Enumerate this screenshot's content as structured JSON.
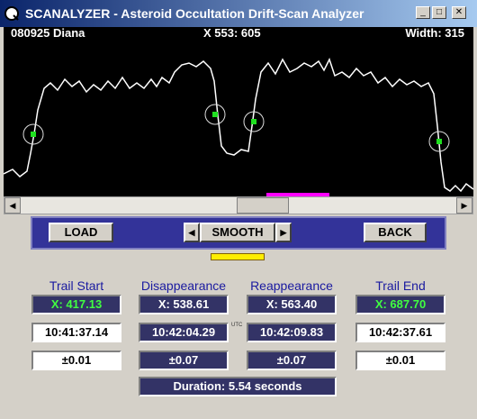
{
  "window": {
    "title": "SCANALYZER - Asteroid Occultation Drift-Scan Analyzer"
  },
  "plot": {
    "info_left": "080925 Diana",
    "info_center": "X 553: 605",
    "info_right": "Width: 315"
  },
  "buttons": {
    "load": "LOAD",
    "smooth": "SMOOTH",
    "back": "BACK"
  },
  "columns": [
    {
      "header": "Trail Start",
      "x": "X:  417.13",
      "time": "10:41:37.14",
      "error": "±0.01"
    },
    {
      "header": "Disappearance",
      "x": "X:  538.61",
      "time": "10:42:04.29",
      "error": "±0.07"
    },
    {
      "header": "Reappearance",
      "x": "X:  563.40",
      "time": "10:42:09.83",
      "error": "±0.07"
    },
    {
      "header": "Trail End",
      "x": "X:  687.70",
      "time": "10:42:37.61",
      "error": "±0.01"
    }
  ],
  "utc_label": "UTC",
  "duration": "Duration:  5.54  seconds"
}
